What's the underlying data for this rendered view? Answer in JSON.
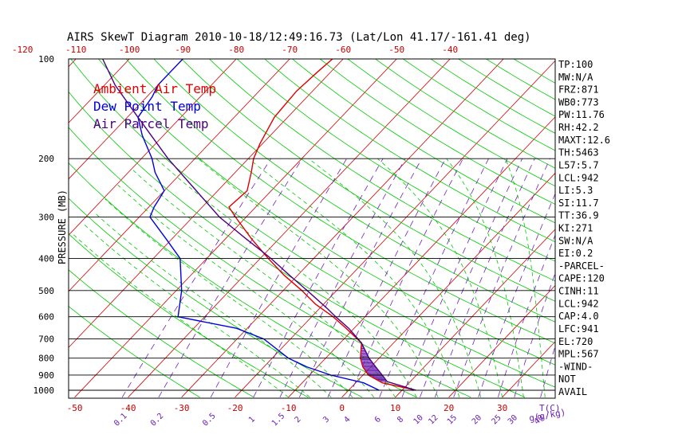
{
  "chart_data": {
    "type": "line",
    "title": "AIRS SkewT Diagram 2010-10-18/12:49:16.73 (Lat/Lon 41.17/-161.41 deg)",
    "ylabel": "PRESSURE (MB)",
    "y_scale": "log",
    "ylim": [
      1050,
      100
    ],
    "pressure_ticks": [
      100,
      200,
      300,
      400,
      500,
      600,
      700,
      800,
      900,
      1000
    ],
    "temp_top_ticks": [
      -120,
      -110,
      -100,
      -90,
      -80,
      -70,
      -60,
      -50,
      -40
    ],
    "temp_bottom_ticks": [
      -50,
      -40,
      -30,
      -20,
      -10,
      0,
      10,
      20,
      30
    ],
    "temp_unit_label": "T(C)",
    "mixing_ratio_labels": [
      "0.1",
      "0.2",
      "0.5",
      "1",
      "1.5",
      "2",
      "3",
      "4",
      "6",
      "8",
      "10",
      "12",
      "15",
      "20",
      "25",
      "30",
      "40"
    ],
    "mixing_unit_label": "g(g/kg)",
    "colors": {
      "ambient": "#e00000",
      "dewpoint": "#0000e0",
      "parcel": "#4b0082",
      "isotherm": "#d00000",
      "dry_adiabat": "#00c800",
      "moist_adiabat": "#00c800",
      "mixing": "#7020c0",
      "hatch": "#6a1fb0"
    },
    "legend": [
      {
        "label": "Ambient Air Temp",
        "color": "#e00000"
      },
      {
        "label": "Dew Point Temp",
        "color": "#0000e0"
      },
      {
        "label": "Air Parcel Temp",
        "color": "#4b0082"
      }
    ],
    "legend_position": "top-left",
    "series": [
      {
        "name": "Ambient Air Temp",
        "points": [
          {
            "p": 1000,
            "t": 12.6
          },
          {
            "p": 950,
            "t": 5.0
          },
          {
            "p": 900,
            "t": 1.0
          },
          {
            "p": 850,
            "t": -1.5
          },
          {
            "p": 800,
            "t": -3.5
          },
          {
            "p": 720,
            "t": -6.0
          },
          {
            "p": 650,
            "t": -11.5
          },
          {
            "p": 600,
            "t": -16.0
          },
          {
            "p": 550,
            "t": -21.5
          },
          {
            "p": 500,
            "t": -26.5
          },
          {
            "p": 450,
            "t": -32.5
          },
          {
            "p": 400,
            "t": -38.5
          },
          {
            "p": 350,
            "t": -45.0
          },
          {
            "p": 300,
            "t": -52.0
          },
          {
            "p": 280,
            "t": -55.0
          },
          {
            "p": 250,
            "t": -54.5
          },
          {
            "p": 220,
            "t": -57.0
          },
          {
            "p": 200,
            "t": -59.0
          },
          {
            "p": 180,
            "t": -60.5
          },
          {
            "p": 150,
            "t": -62.5
          },
          {
            "p": 125,
            "t": -63.0
          },
          {
            "p": 110,
            "t": -62.5
          },
          {
            "p": 100,
            "t": -62.0
          }
        ]
      },
      {
        "name": "Dew Point Temp",
        "points": [
          {
            "p": 1000,
            "t": 5.7
          },
          {
            "p": 950,
            "t": 1.5
          },
          {
            "p": 900,
            "t": -6.0
          },
          {
            "p": 850,
            "t": -12.0
          },
          {
            "p": 800,
            "t": -17.0
          },
          {
            "p": 700,
            "t": -25.0
          },
          {
            "p": 650,
            "t": -32.0
          },
          {
            "p": 600,
            "t": -45.0
          },
          {
            "p": 500,
            "t": -49.0
          },
          {
            "p": 400,
            "t": -55.0
          },
          {
            "p": 350,
            "t": -61.0
          },
          {
            "p": 300,
            "t": -68.0
          },
          {
            "p": 280,
            "t": -69.0
          },
          {
            "p": 250,
            "t": -70.0
          },
          {
            "p": 220,
            "t": -75.0
          },
          {
            "p": 200,
            "t": -78.0
          },
          {
            "p": 170,
            "t": -84.0
          },
          {
            "p": 150,
            "t": -88.0
          },
          {
            "p": 130,
            "t": -89.0
          },
          {
            "p": 120,
            "t": -90.0
          },
          {
            "p": 110,
            "t": -90.0
          },
          {
            "p": 100,
            "t": -90.0
          }
        ]
      },
      {
        "name": "Air Parcel Temp",
        "points": [
          {
            "p": 1000,
            "t": 12.6
          },
          {
            "p": 942,
            "t": 5.7
          },
          {
            "p": 900,
            "t": 3.6
          },
          {
            "p": 850,
            "t": 0.9
          },
          {
            "p": 800,
            "t": -1.9
          },
          {
            "p": 720,
            "t": -6.0
          },
          {
            "p": 650,
            "t": -11.0
          },
          {
            "p": 600,
            "t": -15.5
          },
          {
            "p": 567,
            "t": -18.5
          },
          {
            "p": 500,
            "t": -25.5
          },
          {
            "p": 450,
            "t": -31.5
          },
          {
            "p": 400,
            "t": -38.0
          },
          {
            "p": 350,
            "t": -46.0
          },
          {
            "p": 300,
            "t": -55.0
          },
          {
            "p": 250,
            "t": -64.0
          },
          {
            "p": 200,
            "t": -75.0
          },
          {
            "p": 150,
            "t": -88.0
          },
          {
            "p": 120,
            "t": -98.0
          },
          {
            "p": 100,
            "t": -105.0
          }
        ]
      }
    ],
    "index_list": [
      "TP:100",
      "MW:N/A",
      "FRZ:871",
      "WB0:773",
      "PW:11.76",
      "RH:42.2",
      "MAXT:12.6",
      "TH:5463",
      "L57:5.7",
      "LCL:942",
      "LI:5.3",
      "SI:11.7",
      "TT:36.9",
      "KI:271",
      "SW:N/A",
      "EI:0.2",
      "-PARCEL-",
      "CAPE:120",
      "CINH:11",
      "LCL:942",
      "CAP:4.0",
      "LFC:941",
      "EL:720",
      "MPL:567",
      "-WIND-",
      "NOT",
      "AVAIL"
    ]
  }
}
